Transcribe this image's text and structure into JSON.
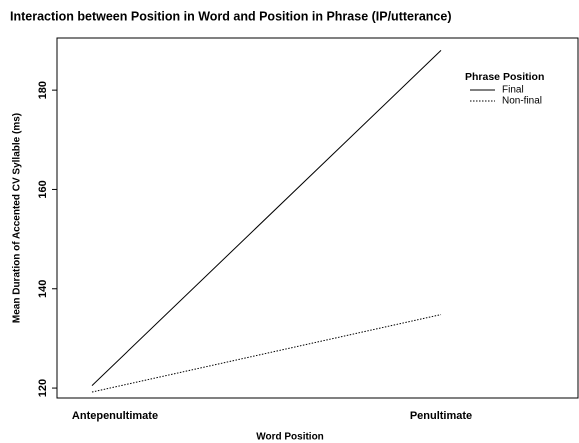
{
  "chart_data": {
    "type": "line",
    "title": "Interaction between Position in Word and Position in Phrase (IP/utterance)",
    "x_label": "Word Position",
    "y_label": "Mean Duration of Accented CV Syllable (ms)",
    "categories": [
      "Antepenultimate",
      "Penultimate"
    ],
    "series": [
      {
        "name": "Final",
        "color": "#000000",
        "dash": "solid",
        "values": [
          120.5,
          188
        ]
      },
      {
        "name": "Non-final",
        "color": "#000000",
        "dash": "dotted",
        "values": [
          119.2,
          134.8
        ]
      }
    ],
    "ylim": [
      118,
      190.5
    ],
    "yticks": [
      120,
      140,
      160,
      180
    ],
    "grid": false,
    "legend_title": "Phrase Position",
    "legend": "top-right"
  }
}
